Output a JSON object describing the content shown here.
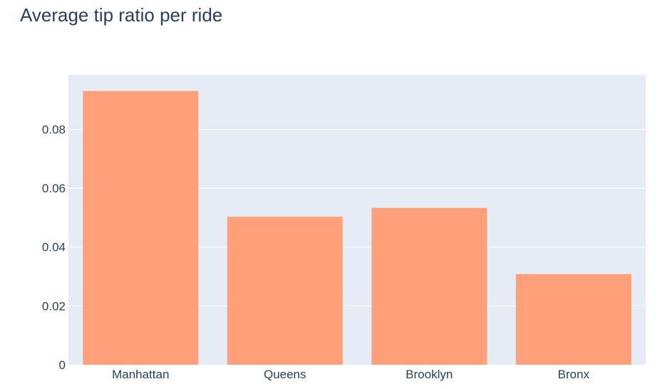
{
  "chart_data": {
    "type": "bar",
    "title": "Average tip ratio per ride",
    "xlabel": "",
    "ylabel": "",
    "categories": [
      "Manhattan",
      "Queens",
      "Brooklyn",
      "Bronx"
    ],
    "values": [
      0.093,
      0.0503,
      0.0533,
      0.0308
    ],
    "ylim": [
      0,
      0.0985
    ],
    "yticks": [
      0,
      0.02,
      0.04,
      0.06,
      0.08
    ],
    "ytick_labels": [
      "0",
      "0.02",
      "0.04",
      "0.06",
      "0.08"
    ],
    "grid": true,
    "legend": "none",
    "colors": {
      "bar": "#ffa07a",
      "plot_background": "#e5ecf6",
      "gridline": "#ffffff",
      "text": "#2a3f5f"
    }
  }
}
